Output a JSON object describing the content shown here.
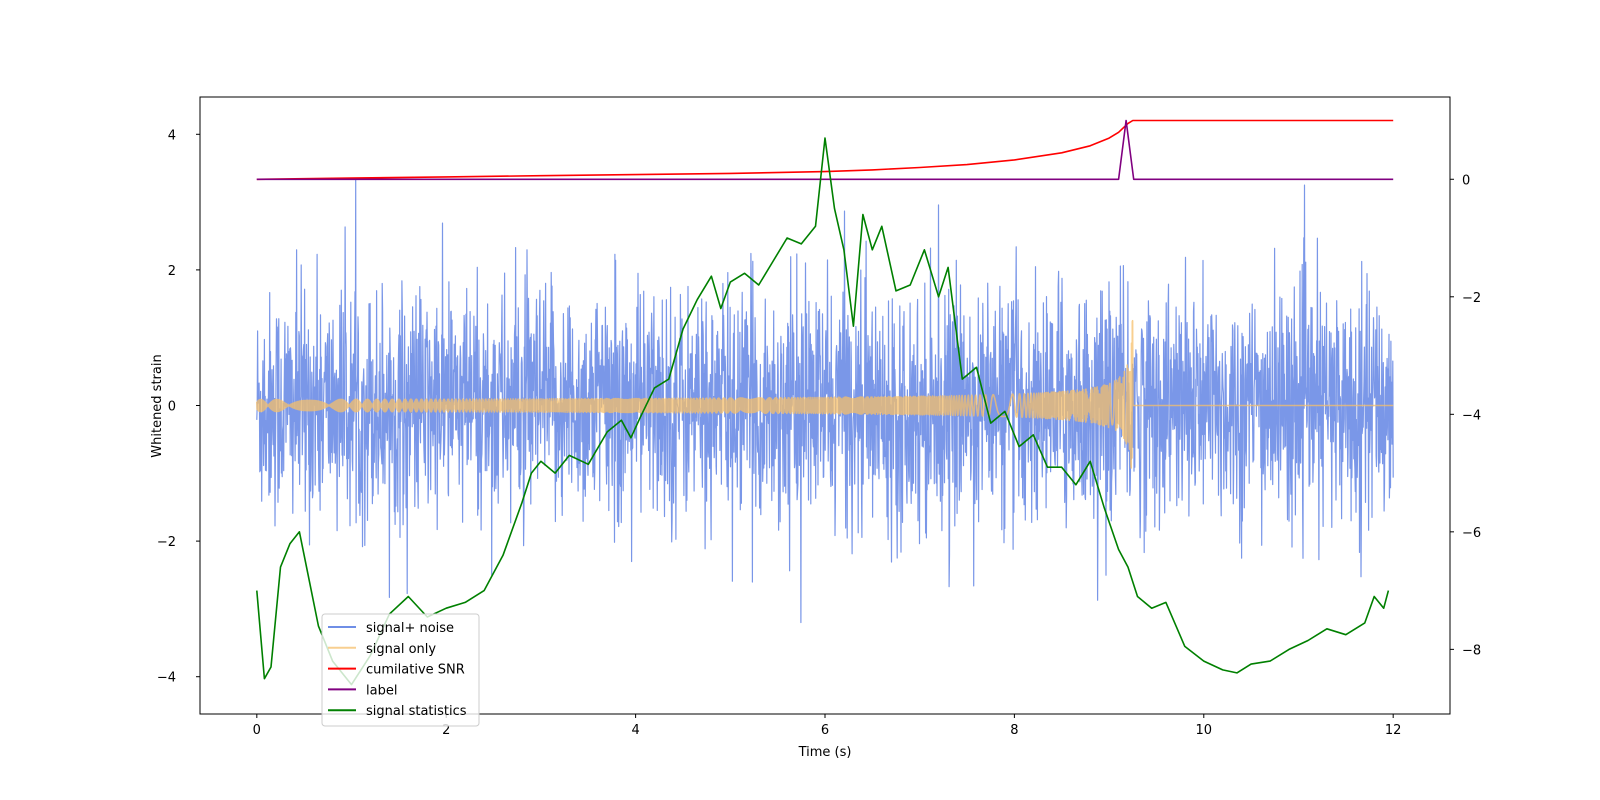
{
  "chart_data": {
    "type": "line",
    "title": "",
    "xlabel": "Time (s)",
    "ylabel": "Whitened strain",
    "y2label": "",
    "xlim": [
      -0.6,
      12.6
    ],
    "ylim": [
      -4.55,
      4.55
    ],
    "y2lim": [
      -9.1,
      1.4
    ],
    "x_ticks": [
      0,
      2,
      4,
      6,
      8,
      10,
      12
    ],
    "y_ticks": [
      -4,
      -2,
      0,
      2,
      4
    ],
    "y2_ticks": [
      -8,
      -6,
      -4,
      -2,
      0
    ],
    "legend_position": "lower-left",
    "grid": false,
    "series": [
      {
        "name": "signal+ noise",
        "axis": "left",
        "color": "#6f8ee6",
        "style": "gaussian-noise",
        "duration": 12,
        "samples": 3000,
        "noise_std": 0.85,
        "plus_signal": true
      },
      {
        "name": "signal only",
        "axis": "left",
        "color": "#f5bf6b",
        "style": "chirp",
        "start": 0,
        "merger": 9.25,
        "end": 12,
        "amp_start": 0.04,
        "amp_peak": 1.5,
        "amp_post_merger": 0.0
      },
      {
        "name": "cumilative SNR",
        "axis": "right",
        "color": "#ff0000",
        "x": [
          0,
          1,
          2,
          3,
          4,
          5,
          6,
          6.5,
          7,
          7.5,
          8,
          8.5,
          8.8,
          9.0,
          9.1,
          9.2,
          9.25,
          9.3,
          10,
          11,
          12
        ],
        "y": [
          0,
          0.02,
          0.04,
          0.06,
          0.08,
          0.1,
          0.13,
          0.16,
          0.2,
          0.25,
          0.33,
          0.45,
          0.57,
          0.7,
          0.8,
          0.95,
          1.0,
          1.0,
          1.0,
          1.0,
          1.0
        ]
      },
      {
        "name": "label",
        "axis": "right",
        "color": "#800080",
        "x": [
          0,
          9.1,
          9.18,
          9.26,
          12
        ],
        "y": [
          0,
          0,
          1.0,
          0,
          0
        ]
      },
      {
        "name": "signal statistics",
        "axis": "right",
        "color": "#008000",
        "x": [
          0,
          0.08,
          0.15,
          0.25,
          0.35,
          0.45,
          0.55,
          0.65,
          0.8,
          1.0,
          1.2,
          1.4,
          1.6,
          1.8,
          2.0,
          2.2,
          2.4,
          2.6,
          2.8,
          2.9,
          3.0,
          3.15,
          3.3,
          3.5,
          3.7,
          3.85,
          3.95,
          4.05,
          4.2,
          4.35,
          4.5,
          4.65,
          4.8,
          4.9,
          5.0,
          5.15,
          5.3,
          5.45,
          5.6,
          5.75,
          5.9,
          6.0,
          6.1,
          6.2,
          6.3,
          6.4,
          6.5,
          6.6,
          6.75,
          6.9,
          7.05,
          7.2,
          7.3,
          7.45,
          7.6,
          7.75,
          7.9,
          8.05,
          8.2,
          8.35,
          8.5,
          8.65,
          8.8,
          8.95,
          9.1,
          9.2,
          9.3,
          9.45,
          9.6,
          9.8,
          10.0,
          10.2,
          10.35,
          10.5,
          10.7,
          10.9,
          11.1,
          11.3,
          11.5,
          11.7,
          11.8,
          11.9,
          11.95
        ],
        "y": [
          -7.0,
          -8.5,
          -8.3,
          -6.6,
          -6.2,
          -6.0,
          -6.8,
          -7.6,
          -8.2,
          -8.6,
          -8.1,
          -7.4,
          -7.1,
          -7.45,
          -7.3,
          -7.2,
          -7.0,
          -6.4,
          -5.5,
          -5.0,
          -4.8,
          -5.0,
          -4.7,
          -4.85,
          -4.3,
          -4.1,
          -4.4,
          -4.05,
          -3.55,
          -3.4,
          -2.55,
          -2.05,
          -1.65,
          -2.2,
          -1.75,
          -1.6,
          -1.8,
          -1.4,
          -1.0,
          -1.1,
          -0.8,
          0.7,
          -0.5,
          -1.2,
          -2.5,
          -0.6,
          -1.2,
          -0.8,
          -1.9,
          -1.8,
          -1.2,
          -2.0,
          -1.5,
          -3.4,
          -3.2,
          -4.15,
          -3.95,
          -4.55,
          -4.35,
          -4.9,
          -4.9,
          -5.2,
          -4.8,
          -5.6,
          -6.3,
          -6.6,
          -7.1,
          -7.3,
          -7.2,
          -7.95,
          -8.2,
          -8.35,
          -8.4,
          -8.25,
          -8.2,
          -8.0,
          -7.85,
          -7.65,
          -7.75,
          -7.55,
          -7.1,
          -7.3,
          -7.0
        ]
      }
    ]
  }
}
